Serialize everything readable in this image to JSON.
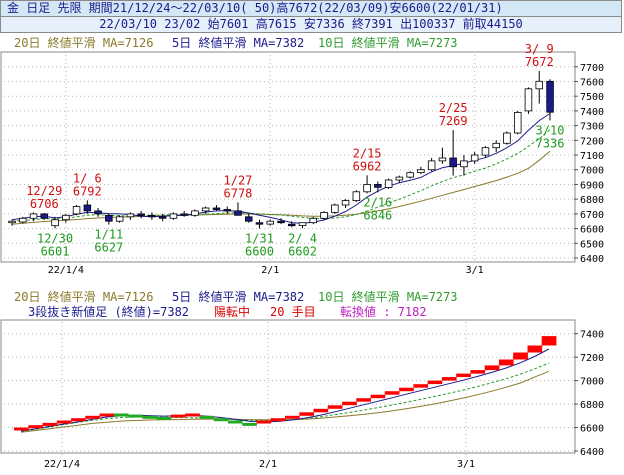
{
  "header": {
    "line1": "金 日足 先限 期間21/12/24～22/03/10( 50)高7672(22/03/09)安6600(22/01/31)",
    "line2": "22/03/10 23/02 始7601 高7615 安7336 終7391 出100337 前取44150"
  },
  "legend": {
    "ma20": "20日 終値平滑 MA=7126",
    "ma5": "5日 終値平滑 MA=7382",
    "ma10": "10日 終値平滑 MA=7273",
    "renko_title": "3段抜き新値足 (終値)=7382",
    "renko_state": "陽転中",
    "renko_count": "20 手目",
    "renko_switch": "転換値 : 7182"
  },
  "colors": {
    "ma20": "#8b7a2a",
    "ma5": "#1a1a8c",
    "ma10": "#2e9b2e",
    "up": "#ff0000",
    "green": "#22aa22",
    "down": "#1a1a8c"
  },
  "chart_data": [
    {
      "type": "candlestick",
      "dates": [
        "21/12/24",
        "21/12/27",
        "21/12/28",
        "21/12/29",
        "21/12/30",
        "22/01/04",
        "22/01/05",
        "22/01/06",
        "22/01/07",
        "22/01/11",
        "22/01/12",
        "22/01/13",
        "22/01/14",
        "22/01/17",
        "22/01/18",
        "22/01/19",
        "22/01/20",
        "22/01/21",
        "22/01/24",
        "22/01/25",
        "22/01/26",
        "22/01/27",
        "22/01/28",
        "22/01/31",
        "22/02/01",
        "22/02/02",
        "22/02/03",
        "22/02/04",
        "22/02/07",
        "22/02/08",
        "22/02/09",
        "22/02/10",
        "22/02/14",
        "22/02/15",
        "22/02/16",
        "22/02/17",
        "22/02/18",
        "22/02/21",
        "22/02/22",
        "22/02/23",
        "22/02/24",
        "22/02/25",
        "22/02/28",
        "22/03/01",
        "22/03/02",
        "22/03/03",
        "22/03/04",
        "22/03/07",
        "22/03/08",
        "22/03/09",
        "22/03/10"
      ],
      "ohlc": [
        [
          6640,
          6660,
          6620,
          6650
        ],
        [
          6645,
          6680,
          6635,
          6670
        ],
        [
          6670,
          6710,
          6650,
          6700
        ],
        [
          6700,
          6706,
          6660,
          6670
        ],
        [
          6620,
          6680,
          6601,
          6660
        ],
        [
          6660,
          6700,
          6640,
          6690
        ],
        [
          6700,
          6760,
          6690,
          6750
        ],
        [
          6760,
          6792,
          6700,
          6720
        ],
        [
          6720,
          6740,
          6680,
          6700
        ],
        [
          6690,
          6700,
          6627,
          6650
        ],
        [
          6650,
          6690,
          6640,
          6680
        ],
        [
          6680,
          6710,
          6660,
          6700
        ],
        [
          6700,
          6720,
          6670,
          6690
        ],
        [
          6690,
          6710,
          6660,
          6680
        ],
        [
          6680,
          6700,
          6650,
          6670
        ],
        [
          6670,
          6710,
          6660,
          6700
        ],
        [
          6700,
          6720,
          6680,
          6690
        ],
        [
          6690,
          6730,
          6680,
          6720
        ],
        [
          6720,
          6750,
          6700,
          6740
        ],
        [
          6740,
          6760,
          6720,
          6730
        ],
        [
          6730,
          6750,
          6700,
          6720
        ],
        [
          6720,
          6778,
          6700,
          6690
        ],
        [
          6680,
          6700,
          6640,
          6650
        ],
        [
          6640,
          6660,
          6600,
          6630
        ],
        [
          6630,
          6660,
          6620,
          6650
        ],
        [
          6650,
          6670,
          6630,
          6640
        ],
        [
          6630,
          6650,
          6610,
          6620
        ],
        [
          6620,
          6640,
          6602,
          6640
        ],
        [
          6640,
          6680,
          6630,
          6670
        ],
        [
          6670,
          6720,
          6660,
          6710
        ],
        [
          6710,
          6770,
          6700,
          6760
        ],
        [
          6760,
          6800,
          6740,
          6790
        ],
        [
          6790,
          6860,
          6780,
          6850
        ],
        [
          6850,
          6962,
          6840,
          6900
        ],
        [
          6900,
          6920,
          6846,
          6880
        ],
        [
          6880,
          6940,
          6870,
          6930
        ],
        [
          6930,
          6960,
          6910,
          6950
        ],
        [
          6950,
          6990,
          6940,
          6980
        ],
        [
          6980,
          7020,
          6970,
          7000
        ],
        [
          7000,
          7080,
          6990,
          7060
        ],
        [
          7060,
          7150,
          7040,
          7080
        ],
        [
          7080,
          7269,
          6960,
          7020
        ],
        [
          7020,
          7100,
          6960,
          7060
        ],
        [
          7060,
          7120,
          7040,
          7100
        ],
        [
          7100,
          7160,
          7080,
          7150
        ],
        [
          7150,
          7200,
          7120,
          7180
        ],
        [
          7180,
          7260,
          7170,
          7250
        ],
        [
          7250,
          7400,
          7240,
          7390
        ],
        [
          7400,
          7560,
          7380,
          7550
        ],
        [
          7550,
          7672,
          7450,
          7601
        ],
        [
          7601,
          7615,
          7336,
          7391
        ]
      ],
      "ma5": [
        6660,
        6670,
        6680,
        6685,
        6672,
        6680,
        6698,
        6710,
        6708,
        6702,
        6700,
        6696,
        6684,
        6680,
        6684,
        6688,
        6692,
        6700,
        6712,
        6720,
        6722,
        6719,
        6706,
        6690,
        6676,
        6660,
        6640,
        6636,
        6644,
        6658,
        6684,
        6716,
        6760,
        6814,
        6854,
        6888,
        6912,
        6928,
        6948,
        6986,
        7014,
        7028,
        7044,
        7064,
        7082,
        7112,
        7150,
        7196,
        7268,
        7334,
        7382
      ],
      "ma10": [
        6650,
        6655,
        6660,
        6668,
        6666,
        6670,
        6680,
        6690,
        6695,
        6690,
        6688,
        6685,
        6688,
        6690,
        6692,
        6693,
        6694,
        6695,
        6698,
        6702,
        6706,
        6708,
        6706,
        6700,
        6696,
        6692,
        6684,
        6676,
        6670,
        6668,
        6672,
        6680,
        6696,
        6718,
        6746,
        6774,
        6800,
        6828,
        6858,
        6890,
        6920,
        6946,
        6966,
        6990,
        7012,
        7040,
        7074,
        7110,
        7160,
        7210,
        7273
      ],
      "ma20": [
        6630,
        6636,
        6642,
        6648,
        6652,
        6656,
        6662,
        6668,
        6672,
        6676,
        6678,
        6680,
        6682,
        6684,
        6686,
        6688,
        6690,
        6692,
        6694,
        6696,
        6698,
        6699,
        6699,
        6698,
        6696,
        6694,
        6690,
        6686,
        6684,
        6684,
        6686,
        6690,
        6698,
        6708,
        6720,
        6734,
        6750,
        6768,
        6786,
        6806,
        6826,
        6846,
        6866,
        6886,
        6906,
        6926,
        6950,
        6976,
        7010,
        7064,
        7126
      ],
      "annotations": [
        {
          "label": "12/29",
          "value": "6706",
          "i": 3,
          "kind": "high"
        },
        {
          "label": "1/ 6",
          "value": "6792",
          "i": 7,
          "kind": "high"
        },
        {
          "label": "1/27",
          "value": "6778",
          "i": 21,
          "kind": "high"
        },
        {
          "label": "2/15",
          "value": "6962",
          "i": 33,
          "kind": "high"
        },
        {
          "label": "2/25",
          "value": "7269",
          "i": 41,
          "kind": "high"
        },
        {
          "label": "3/ 9",
          "value": "7672",
          "i": 49,
          "kind": "high"
        },
        {
          "label": "12/30",
          "value": "6601",
          "i": 4,
          "kind": "low"
        },
        {
          "label": "1/11",
          "value": "6627",
          "i": 9,
          "kind": "low"
        },
        {
          "label": "1/31",
          "value": "6600",
          "i": 23,
          "kind": "low"
        },
        {
          "label": "2/ 4",
          "value": "6602",
          "i": 27,
          "kind": "low"
        },
        {
          "label": "2/16",
          "value": "6846",
          "i": 34,
          "kind": "low"
        },
        {
          "label": "3/10",
          "value": "7336",
          "i": 50,
          "kind": "low"
        }
      ],
      "ylim": [
        6400,
        7780
      ],
      "yticks": [
        6400,
        6500,
        6600,
        6700,
        6800,
        6900,
        7000,
        7100,
        7200,
        7300,
        7400,
        7500,
        7600,
        7700
      ],
      "xticks": [
        {
          "label": "22/1/4",
          "i": 5
        },
        {
          "label": "2/1",
          "i": 24
        },
        {
          "label": "3/1",
          "i": 43
        }
      ]
    },
    {
      "type": "new-price-bars",
      "ylim": [
        6400,
        7500
      ],
      "yticks": [
        6400,
        6600,
        6800,
        7000,
        7200,
        7400
      ],
      "bars": [
        [
          6580,
          6600,
          "up"
        ],
        [
          6600,
          6620,
          "up"
        ],
        [
          6620,
          6640,
          "up"
        ],
        [
          6640,
          6660,
          "up"
        ],
        [
          6660,
          6680,
          "up"
        ],
        [
          6680,
          6700,
          "up"
        ],
        [
          6700,
          6720,
          "up"
        ],
        [
          6700,
          6720,
          "green"
        ],
        [
          6690,
          6710,
          "green"
        ],
        [
          6680,
          6700,
          "green"
        ],
        [
          6670,
          6690,
          "green"
        ],
        [
          6690,
          6710,
          "up"
        ],
        [
          6700,
          6720,
          "up"
        ],
        [
          6680,
          6700,
          "green"
        ],
        [
          6660,
          6680,
          "green"
        ],
        [
          6640,
          6660,
          "green"
        ],
        [
          6620,
          6640,
          "green"
        ],
        [
          6640,
          6660,
          "up"
        ],
        [
          6660,
          6680,
          "up"
        ],
        [
          6680,
          6700,
          "up"
        ],
        [
          6700,
          6730,
          "up"
        ],
        [
          6730,
          6760,
          "up"
        ],
        [
          6760,
          6790,
          "up"
        ],
        [
          6790,
          6820,
          "up"
        ],
        [
          6820,
          6850,
          "up"
        ],
        [
          6850,
          6880,
          "up"
        ],
        [
          6880,
          6910,
          "up"
        ],
        [
          6910,
          6940,
          "up"
        ],
        [
          6940,
          6970,
          "up"
        ],
        [
          6970,
          7000,
          "up"
        ],
        [
          7000,
          7030,
          "up"
        ],
        [
          7030,
          7060,
          "up"
        ],
        [
          7060,
          7090,
          "up"
        ],
        [
          7090,
          7130,
          "up"
        ],
        [
          7130,
          7180,
          "up"
        ],
        [
          7180,
          7240,
          "up"
        ],
        [
          7240,
          7300,
          "up"
        ],
        [
          7300,
          7380,
          "up"
        ]
      ],
      "ma20": [
        6560,
        6575,
        6590,
        6605,
        6620,
        6635,
        6645,
        6655,
        6660,
        6664,
        6666,
        6668,
        6670,
        6672,
        6672,
        6670,
        6668,
        6666,
        6666,
        6668,
        6672,
        6680,
        6690,
        6700,
        6712,
        6726,
        6742,
        6760,
        6780,
        6802,
        6826,
        6852,
        6880,
        6910,
        6944,
        6980,
        7030,
        7080
      ],
      "ma10": [
        6565,
        6585,
        6605,
        6625,
        6645,
        6662,
        6676,
        6686,
        6690,
        6690,
        6688,
        6686,
        6684,
        6680,
        6674,
        6668,
        6662,
        6660,
        6662,
        6668,
        6678,
        6692,
        6710,
        6728,
        6748,
        6770,
        6792,
        6816,
        6840,
        6866,
        6892,
        6920,
        6950,
        6982,
        7016,
        7056,
        7100,
        7150
      ],
      "ma5": [
        6570,
        6590,
        6610,
        6630,
        6650,
        6670,
        6690,
        6700,
        6705,
        6702,
        6698,
        6700,
        6704,
        6698,
        6686,
        6670,
        6654,
        6648,
        6652,
        6664,
        6682,
        6706,
        6734,
        6764,
        6794,
        6824,
        6854,
        6884,
        6914,
        6944,
        6974,
        7004,
        7036,
        7070,
        7108,
        7152,
        7206,
        7270
      ],
      "xticks": [
        {
          "label": "22/1/4",
          "px": 62
        },
        {
          "label": "2/1",
          "px": 268
        },
        {
          "label": "3/1",
          "px": 466
        }
      ]
    }
  ]
}
